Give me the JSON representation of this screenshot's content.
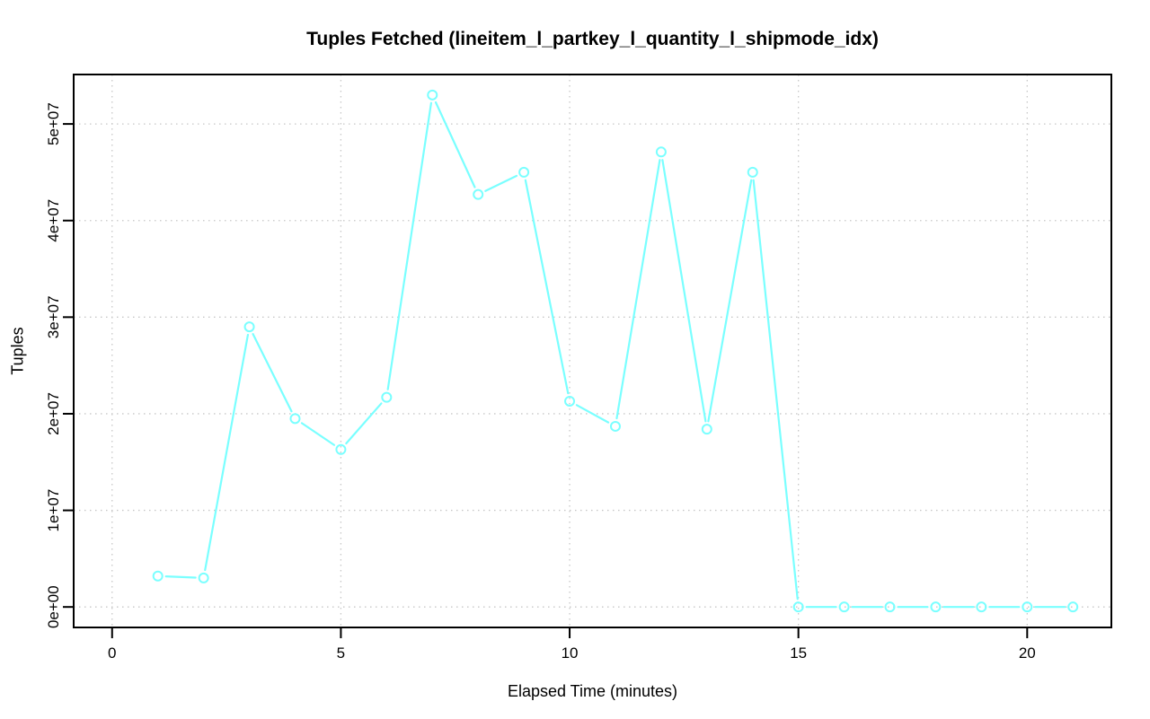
{
  "chart_data": {
    "type": "line",
    "title": "Tuples Fetched (lineitem_l_partkey_l_quantity_l_shipmode_idx)",
    "xlabel": "Elapsed Time (minutes)",
    "ylabel": "Tuples",
    "grid": "dotted",
    "legend": "none",
    "xlim": [
      -0.84,
      21.84
    ],
    "ylim": [
      -2120000,
      55120000
    ],
    "x_ticks": [
      0,
      5,
      10,
      15,
      20
    ],
    "x_tick_labels": [
      "0",
      "5",
      "10",
      "15",
      "20"
    ],
    "y_ticks": [
      0,
      10000000,
      20000000,
      30000000,
      40000000,
      50000000
    ],
    "y_tick_labels": [
      "0e+00",
      "1e+07",
      "2e+07",
      "3e+07",
      "4e+07",
      "5e+07"
    ],
    "series": [
      {
        "name": "tuples-fetched",
        "marker": "open-circle",
        "line_style": "solid-with-marker-gaps",
        "x": [
          1,
          2,
          3,
          4,
          5,
          6,
          7,
          8,
          9,
          10,
          11,
          12,
          13,
          14,
          15,
          16,
          17,
          18,
          19,
          20,
          21
        ],
        "values": [
          3200000,
          3000000,
          29000000,
          19500000,
          16300000,
          21700000,
          53000000,
          42700000,
          45000000,
          21300000,
          18700000,
          47100000,
          18400000,
          45000000,
          0,
          0,
          0,
          0,
          0,
          0,
          0
        ]
      }
    ],
    "colors": {
      "series": "#7AFFFF",
      "grid": "#C7C7C7",
      "axis": "#000000",
      "text": "#000000",
      "background": "#FFFFFF"
    }
  }
}
